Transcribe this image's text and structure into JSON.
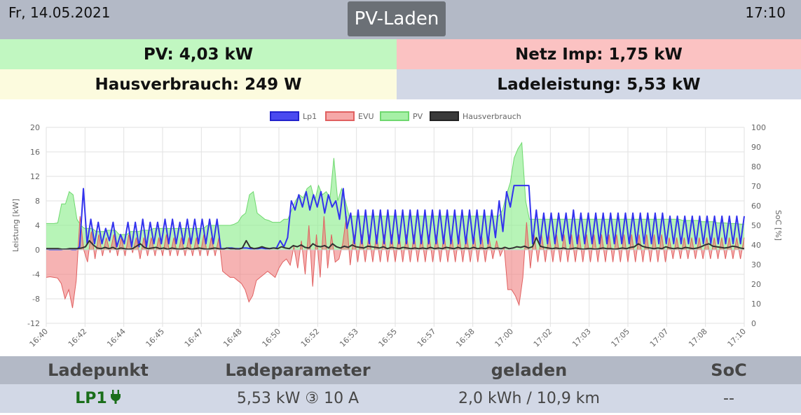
{
  "header": {
    "date": "Fr, 14.05.2021",
    "mode": "PV-Laden",
    "time": "17:10"
  },
  "stats": {
    "pv": "PV: 4,03 kW",
    "netz": "Netz Imp: 1,75 kW",
    "hausverbrauch": "Hausverbrauch: 249 W",
    "ladeleistung": "Ladeleistung: 5,53 kW"
  },
  "colors": {
    "lp1": "#3333ee",
    "evu": "#f08080",
    "pv": "#90ee90",
    "haus": "#333333"
  },
  "chart_data": {
    "type": "line",
    "legend": [
      "Lp1",
      "EVU",
      "PV",
      "Hausverbrauch"
    ],
    "legend_position": "top",
    "ylabel": "Leistung [kW]",
    "y2label": "SoC [%]",
    "ylim": [
      -12,
      20
    ],
    "y2lim": [
      0,
      100
    ],
    "yticks": [
      "20",
      "16",
      "12",
      "8",
      "4",
      "0",
      "-4",
      "-8",
      "-12"
    ],
    "y2ticks": [
      "100",
      "90",
      "80",
      "70",
      "60",
      "50",
      "40",
      "30",
      "20",
      "10",
      "0"
    ],
    "xticks": [
      "16:40",
      "16:42",
      "16:44",
      "16:45",
      "16:47",
      "16:48",
      "16:50",
      "16:52",
      "16:53",
      "16:55",
      "16:57",
      "16:58",
      "17:00",
      "17:02",
      "17:03",
      "17:05",
      "17:07",
      "17:08",
      "17:10"
    ],
    "grid": true,
    "series": [
      {
        "name": "Lp1",
        "color": "#3333ee",
        "values": [
          0.1,
          0.0,
          0.0,
          0.0,
          0.0,
          0.1,
          0.1,
          0.0,
          0.0,
          0.5,
          10.0,
          1.0,
          5.0,
          1.0,
          4.5,
          1.0,
          3.5,
          1.5,
          4.5,
          0.5,
          2.5,
          1.0,
          4.5,
          0.5,
          4.5,
          0.5,
          5.0,
          0.5,
          4.5,
          1.0,
          4.5,
          1.0,
          5.0,
          1.0,
          5.0,
          1.0,
          4.5,
          1.0,
          5.0,
          1.0,
          5.0,
          1.0,
          5.0,
          1.0,
          5.0,
          1.0,
          5.0,
          0.2,
          0.2,
          0.3,
          0.3,
          0.2,
          0.2,
          0.3,
          0.3,
          0.2,
          0.2,
          0.2,
          0.3,
          0.2,
          0.2,
          0.3,
          0.3,
          1.5,
          0.5,
          2.0,
          8.0,
          6.5,
          9.0,
          7.0,
          9.5,
          6.5,
          9.0,
          7.0,
          9.5,
          6.0,
          9.0,
          7.0,
          8.0,
          5.0,
          10.0,
          3.5,
          6.0,
          1.0,
          6.5,
          1.0,
          6.5,
          1.0,
          6.5,
          1.0,
          6.5,
          1.0,
          6.5,
          1.0,
          6.5,
          1.0,
          6.5,
          1.0,
          6.5,
          1.0,
          6.5,
          1.0,
          6.5,
          1.0,
          6.5,
          1.0,
          6.5,
          1.0,
          6.5,
          1.0,
          6.5,
          1.0,
          6.5,
          1.0,
          6.5,
          1.0,
          6.5,
          1.0,
          6.5,
          1.0,
          6.5,
          2.0,
          8.0,
          3.0,
          9.5,
          7.0,
          10.5,
          10.5,
          10.5,
          10.5,
          10.5,
          1.0,
          6.5,
          1.0,
          6.0,
          1.0,
          6.0,
          1.0,
          6.0,
          1.5,
          6.0,
          1.0,
          6.5,
          1.0,
          6.0,
          1.0,
          6.0,
          1.0,
          6.0,
          1.0,
          6.0,
          1.0,
          6.0,
          1.0,
          6.0,
          1.0,
          6.0,
          1.0,
          6.0,
          1.0,
          6.0,
          1.0,
          6.0,
          1.0,
          6.0,
          1.0,
          6.0,
          1.0,
          5.5,
          1.0,
          5.5,
          1.0,
          5.5,
          1.0,
          5.5,
          1.0,
          5.5,
          1.0,
          5.5,
          1.0,
          5.5,
          1.0,
          5.5,
          1.0,
          5.5,
          1.0,
          5.5,
          1.0,
          5.5
        ]
      },
      {
        "name": "EVU",
        "color": "#f08080",
        "values": [
          -4.5,
          -4.4,
          -4.5,
          -4.6,
          -5.5,
          -8.0,
          -6.5,
          -9.5,
          -5.0,
          5.5,
          0.0,
          -2.0,
          3.0,
          -1.5,
          2.5,
          -1.0,
          2.0,
          -0.5,
          2.5,
          -1.0,
          2.0,
          -1.0,
          2.5,
          -0.5,
          2.0,
          -1.5,
          2.0,
          -1.0,
          2.0,
          -1.0,
          2.0,
          -1.0,
          2.5,
          -1.0,
          2.0,
          -1.0,
          2.0,
          -1.0,
          2.0,
          -1.0,
          2.0,
          -1.0,
          2.5,
          -1.0,
          2.0,
          -1.0,
          2.0,
          -3.5,
          -4.0,
          -4.5,
          -4.5,
          -5.0,
          -5.5,
          -6.5,
          -8.5,
          -7.5,
          -5.0,
          -4.5,
          -4.0,
          -3.5,
          -4.0,
          -4.5,
          -3.0,
          -2.0,
          -1.5,
          -2.5,
          0.5,
          -3.0,
          1.5,
          -4.0,
          4.0,
          -6.0,
          2.5,
          -4.5,
          5.5,
          -3.0,
          2.5,
          -2.0,
          -1.5,
          1.0,
          5.5,
          -2.5,
          2.5,
          -2.0,
          2.5,
          -2.0,
          2.5,
          -2.0,
          2.5,
          -2.0,
          2.5,
          -2.0,
          2.5,
          -2.0,
          2.5,
          -2.0,
          2.5,
          -2.0,
          2.5,
          -2.0,
          2.5,
          -2.0,
          2.5,
          -2.0,
          2.5,
          -2.0,
          2.5,
          -2.0,
          2.5,
          -2.0,
          2.5,
          -2.0,
          2.5,
          -2.0,
          2.5,
          -2.0,
          2.5,
          -2.0,
          2.0,
          -1.5,
          1.5,
          -1.0,
          0.5,
          -6.5,
          -6.5,
          -7.5,
          -9.0,
          -4.5,
          4.5,
          -3.0,
          2.5,
          -2.0,
          2.5,
          -2.0,
          2.5,
          -2.0,
          2.5,
          -2.0,
          2.5,
          -2.0,
          2.5,
          -2.0,
          2.5,
          -2.0,
          2.5,
          -2.0,
          2.5,
          -2.0,
          2.5,
          -2.0,
          2.5,
          -2.0,
          2.5,
          -2.0,
          2.5,
          -2.0,
          2.5,
          -2.0,
          2.5,
          -2.0,
          2.5,
          -2.0,
          2.5,
          -2.0,
          2.5,
          -2.0,
          2.0,
          -1.5,
          2.0,
          -1.5,
          2.0,
          -1.5,
          2.0,
          -1.5,
          2.0,
          -1.5,
          2.0,
          -1.5,
          2.0,
          -1.5,
          2.0,
          -1.5,
          2.0,
          -1.5,
          2.0,
          -1.5,
          2.0
        ]
      },
      {
        "name": "PV",
        "color": "#90ee90",
        "values": [
          4.3,
          4.3,
          4.3,
          4.4,
          7.5,
          7.5,
          9.5,
          9.0,
          5.0,
          4.0,
          3.5,
          3.5,
          3.5,
          3.0,
          3.0,
          3.0,
          3.2,
          3.2,
          3.2,
          2.5,
          2.5,
          2.5,
          3.0,
          3.0,
          3.0,
          3.2,
          3.2,
          3.2,
          3.5,
          3.5,
          3.5,
          3.5,
          3.5,
          3.5,
          3.5,
          3.5,
          3.5,
          3.5,
          3.5,
          3.5,
          3.5,
          3.5,
          4.0,
          4.0,
          4.0,
          4.0,
          4.0,
          4.0,
          4.0,
          4.2,
          4.5,
          5.5,
          6.0,
          9.0,
          9.5,
          6.0,
          5.5,
          5.0,
          4.8,
          4.5,
          4.5,
          4.5,
          5.0,
          5.0,
          6.5,
          8.0,
          9.0,
          8.5,
          10.0,
          10.5,
          8.0,
          10.5,
          9.0,
          9.5,
          8.5,
          15.0,
          8.0,
          10.0,
          8.0,
          5.5,
          5.5,
          5.5,
          5.5,
          5.5,
          5.5,
          5.5,
          5.5,
          5.5,
          5.5,
          5.5,
          5.5,
          5.5,
          5.5,
          5.5,
          5.5,
          5.5,
          5.5,
          5.5,
          5.5,
          5.5,
          5.5,
          5.5,
          5.5,
          5.5,
          5.5,
          5.5,
          5.5,
          5.5,
          5.5,
          5.5,
          5.5,
          5.5,
          5.5,
          5.5,
          5.5,
          5.5,
          5.5,
          5.5,
          5.5,
          6.5,
          9.0,
          11.0,
          15.0,
          16.5,
          17.5,
          8.0,
          5.0,
          5.0,
          5.0,
          5.0,
          5.0,
          5.0,
          5.0,
          5.0,
          5.0,
          5.0,
          5.0,
          5.0,
          5.0,
          5.0,
          5.0,
          5.0,
          5.0,
          5.0,
          5.0,
          5.0,
          5.0,
          5.0,
          5.0,
          5.0,
          5.0,
          5.0,
          5.0,
          5.0,
          5.0,
          5.0,
          5.0,
          5.0,
          5.0,
          5.0,
          5.0,
          5.0,
          5.0,
          5.0,
          5.0,
          5.0,
          4.8,
          4.8,
          4.8,
          4.8,
          4.8,
          4.6,
          4.6,
          4.6,
          4.6,
          4.4,
          4.4,
          4.4,
          4.3,
          4.3,
          4.3,
          4.2,
          4.2
        ]
      },
      {
        "name": "Hausverbrauch",
        "color": "#333333",
        "values": [
          0.2,
          0.2,
          0.2,
          0.2,
          0.1,
          0.1,
          0.2,
          0.2,
          0.2,
          0.3,
          0.5,
          1.5,
          0.8,
          0.3,
          0.2,
          0.4,
          0.2,
          0.4,
          0.1,
          0.3,
          0.2,
          0.1,
          0.2,
          0.6,
          1.0,
          0.4,
          0.2,
          0.3,
          0.4,
          0.2,
          0.3,
          0.1,
          0.3,
          0.2,
          0.1,
          0.2,
          0.3,
          0.1,
          0.2,
          0.3,
          0.2,
          0.1,
          0.2,
          0.3,
          0.2,
          0.1,
          0.3,
          0.2,
          0.2,
          0.1,
          0.3,
          1.5,
          0.4,
          0.2,
          0.3,
          0.5,
          0.3,
          0.2,
          0.3,
          0.2,
          0.5,
          0.3,
          0.2,
          0.7,
          0.5,
          0.8,
          0.4,
          0.3,
          1.0,
          0.6,
          0.5,
          0.7,
          0.3,
          1.0,
          0.5,
          0.3,
          0.6,
          0.4,
          0.8,
          0.5,
          0.4,
          0.3,
          0.6,
          0.5,
          0.4,
          0.3,
          0.5,
          0.2,
          0.4,
          0.3,
          0.2,
          0.4,
          0.3,
          0.2,
          0.3,
          0.2,
          0.3,
          0.2,
          0.4,
          0.2,
          0.3,
          0.2,
          0.4,
          0.3,
          0.2,
          0.4,
          0.2,
          0.3,
          0.2,
          0.4,
          0.2,
          0.3,
          0.2,
          0.4,
          0.2,
          0.3,
          0.2,
          0.4,
          0.2,
          0.3,
          0.5,
          0.4,
          0.6,
          0.3,
          0.5,
          2.0,
          0.6,
          0.4,
          0.3,
          0.2,
          0.3,
          0.2,
          0.3,
          0.1,
          0.2,
          0.3,
          0.2,
          0.1,
          0.2,
          0.2,
          0.1,
          0.2,
          0.3,
          0.2,
          0.2,
          0.1,
          0.2,
          0.3,
          0.2,
          0.4,
          0.5,
          1.0,
          0.6,
          0.4,
          0.3,
          0.2,
          0.3,
          0.2,
          0.5,
          0.3,
          0.2,
          0.3,
          0.2,
          0.4,
          0.3,
          0.2,
          0.3,
          0.5,
          0.8,
          1.0,
          0.6,
          0.5,
          0.4,
          0.3,
          0.4,
          0.6,
          0.5,
          0.3,
          0.2
        ]
      }
    ]
  },
  "table": {
    "headers": [
      "Ladepunkt",
      "Ladeparameter",
      "geladen",
      "SoC"
    ],
    "row": {
      "ladepunkt": "LP1",
      "ladeparameter": "5,53 kW ③ 10 A",
      "geladen": "2,0 kWh / 10,9 km",
      "soc": "--"
    }
  }
}
